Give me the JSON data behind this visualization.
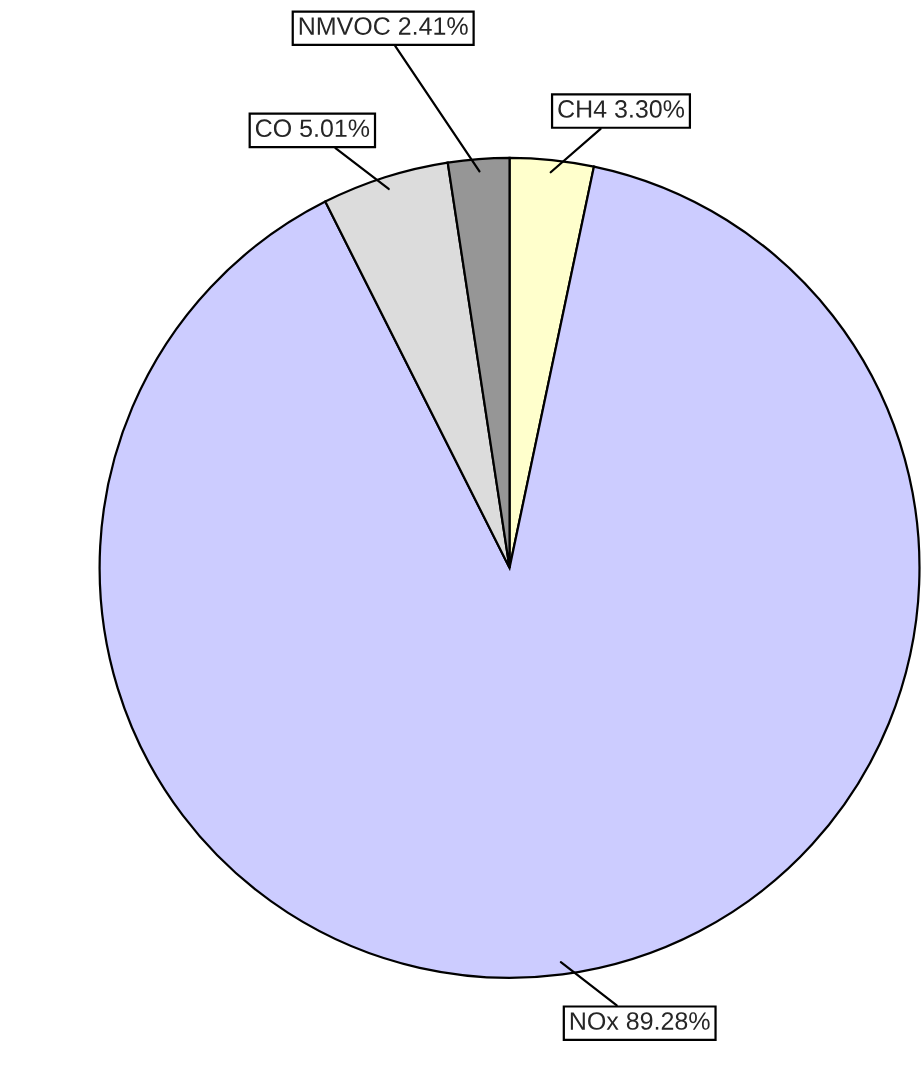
{
  "chart_data": {
    "type": "pie",
    "categories": [
      "CH4",
      "NOx",
      "CO",
      "NMVOC"
    ],
    "values": [
      3.3,
      89.28,
      5.01,
      2.41
    ],
    "value_labels": [
      "3.30%",
      "89.28%",
      "5.01%",
      "2.41%"
    ],
    "colors": [
      "#ffffcc",
      "#ccccff",
      "#dcdcdc",
      "#969696"
    ]
  }
}
